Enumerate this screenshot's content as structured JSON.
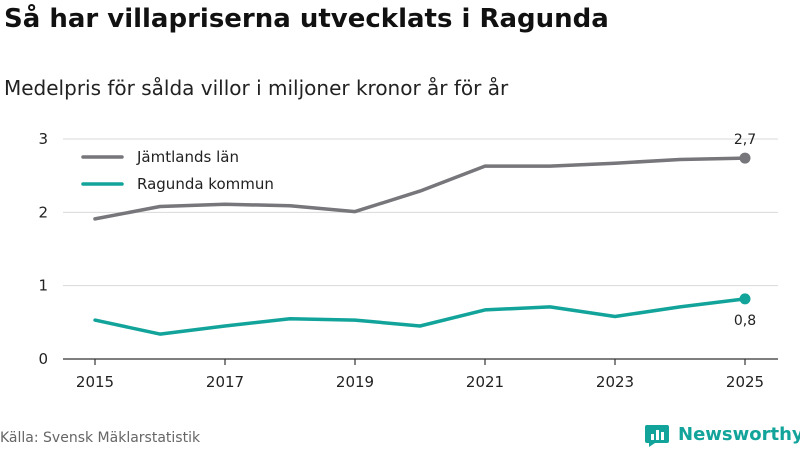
{
  "title": "Så har villapriserna utvecklats i Ragunda",
  "subtitle": "Medelpris för sålda villor i miljoner kronor år för år",
  "source": "Källa: Svensk Mäklarstatistik",
  "brand": {
    "name": "Newsworthy",
    "icon": "newsworthy-logo-icon",
    "color": "#12a49a"
  },
  "chart_data": {
    "type": "line",
    "title": "Så har villapriserna utvecklats i Ragunda",
    "subtitle": "Medelpris för sålda villor i miljoner kronor år för år",
    "xlabel": "",
    "ylabel": "",
    "x": [
      2015,
      2016,
      2017,
      2018,
      2019,
      2020,
      2021,
      2022,
      2023,
      2024,
      2025
    ],
    "xlim": [
      2015,
      2025
    ],
    "ylim": [
      0,
      3
    ],
    "x_ticks": [
      2015,
      2017,
      2019,
      2021,
      2023,
      2025
    ],
    "x_tick_labels": [
      "2015",
      "2017",
      "2019",
      "2021",
      "2023",
      "2025"
    ],
    "y_ticks": [
      0,
      1,
      2,
      3
    ],
    "y_tick_labels": [
      "0",
      "1",
      "2",
      "3"
    ],
    "grid": true,
    "legend_position": "top-left",
    "series": [
      {
        "name": "Jämtlands län",
        "color": "#76767b",
        "values": [
          1.91,
          2.08,
          2.11,
          2.09,
          2.01,
          2.29,
          2.63,
          2.63,
          2.67,
          2.72,
          2.74
        ],
        "end_label": "2,7",
        "end_label_position": "above"
      },
      {
        "name": "Ragunda kommun",
        "color": "#12a49a",
        "values": [
          0.53,
          0.34,
          0.45,
          0.55,
          0.53,
          0.45,
          0.67,
          0.71,
          0.58,
          0.71,
          0.82
        ],
        "end_label": "0,8",
        "end_label_position": "below"
      }
    ]
  }
}
